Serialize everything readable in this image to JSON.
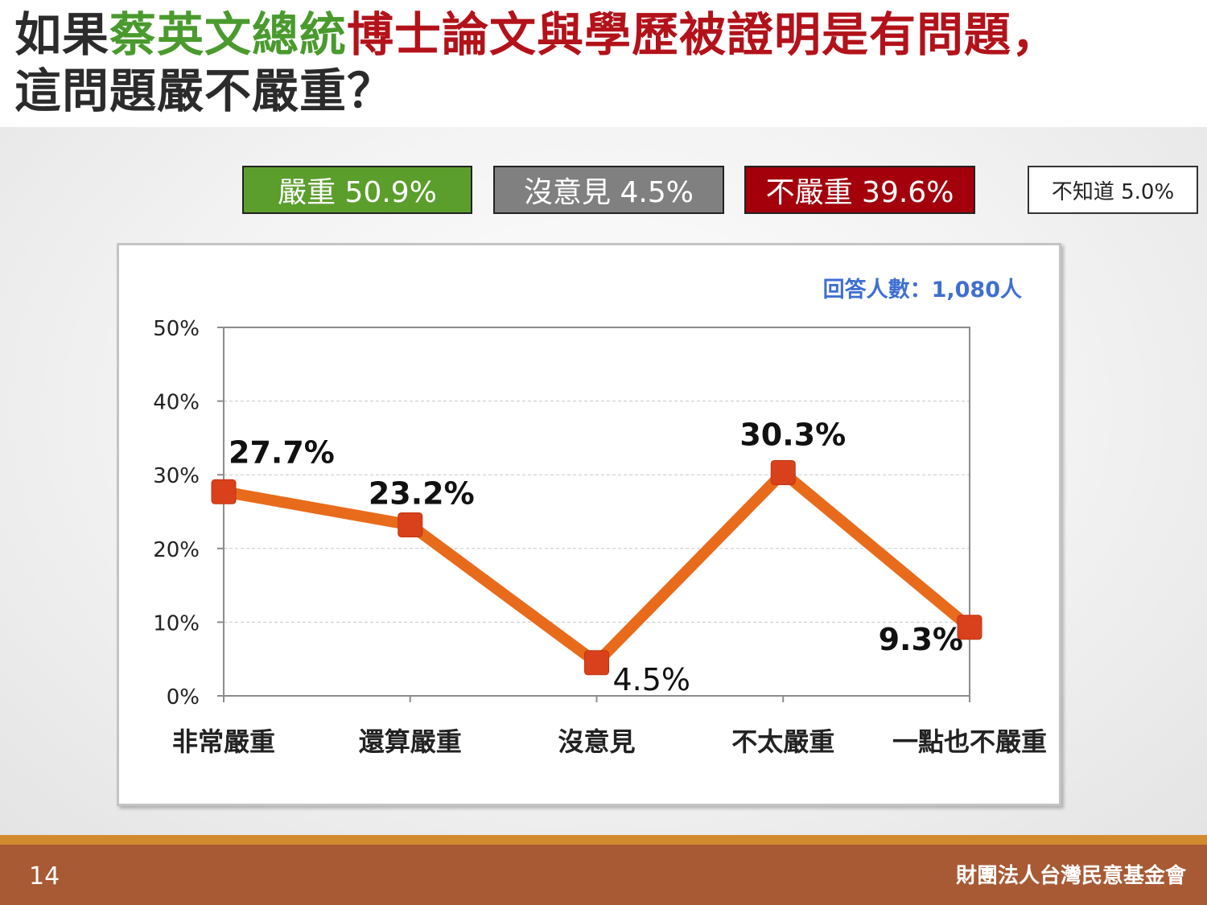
{
  "title": {
    "part1": "如果",
    "part2": "蔡英文總統",
    "part3": "博士論文與學歷被證明是有問題，",
    "line2": "這問題嚴不嚴重？"
  },
  "legend": [
    {
      "label": "嚴重 50.9%",
      "color": "#5b9e2c"
    },
    {
      "label": "沒意見 4.5%",
      "color": "#808080"
    },
    {
      "label": "不嚴重 39.6%",
      "color": "#a3000c"
    },
    {
      "label": "不知道 5.0%",
      "color": "#ffffff"
    }
  ],
  "chart_data": {
    "type": "line",
    "categories": [
      "非常嚴重",
      "還算嚴重",
      "沒意見",
      "不太嚴重",
      "一點也不嚴重"
    ],
    "series": [
      {
        "values": [
          27.7,
          23.2,
          4.5,
          30.3,
          9.3
        ],
        "color": "#e86b1c",
        "marker_color": "#d9401c"
      }
    ],
    "data_labels": [
      "27.7%",
      "23.2%",
      "4.5%",
      "30.3%",
      "9.3%"
    ],
    "ylim": [
      0,
      50
    ],
    "yticks": [
      0,
      10,
      20,
      30,
      40,
      50
    ],
    "ytick_labels": [
      "0%",
      "10%",
      "20%",
      "30%",
      "40%",
      "50%"
    ],
    "grid": true,
    "annotation": "回答人數：1,080人"
  },
  "footer": {
    "page_number": "14",
    "organization": "財團法人台灣民意基金會"
  }
}
